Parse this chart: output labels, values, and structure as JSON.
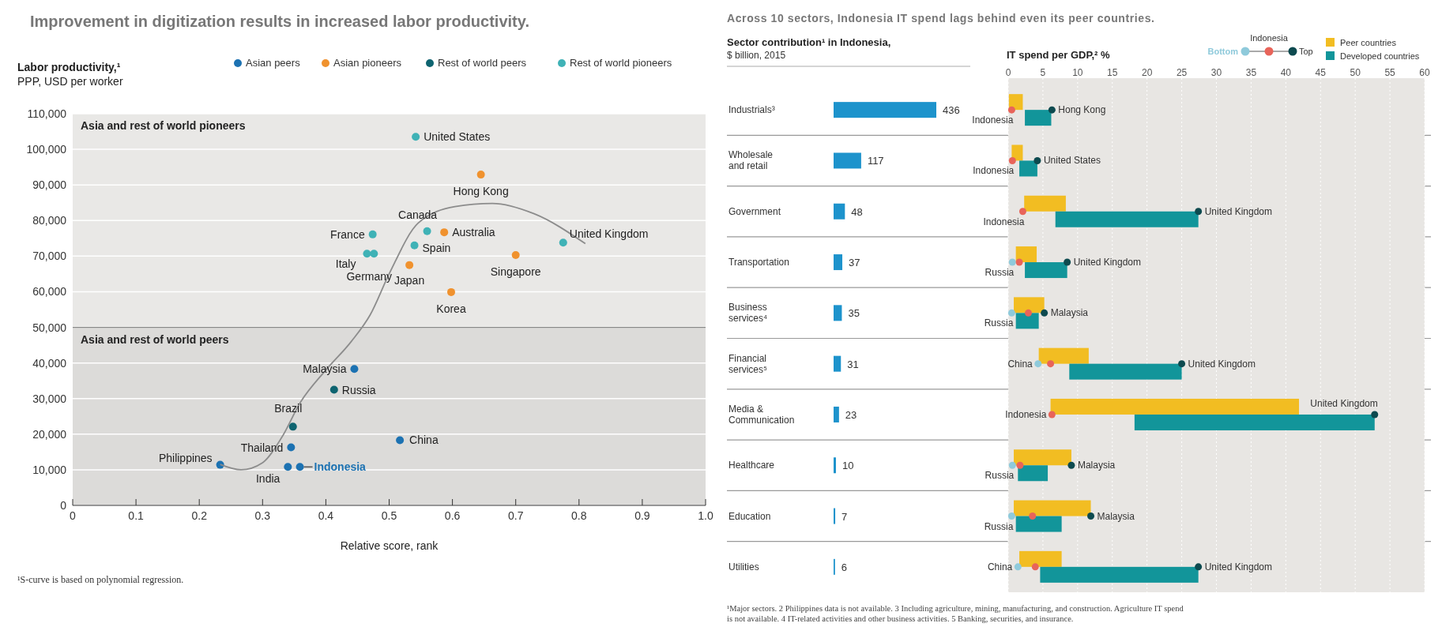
{
  "chart_data": [
    {
      "type": "scatter",
      "title": "Improvement in digitization results in increased labor productivity.",
      "ylabel": "Labor productivity,¹",
      "subtitle": "PPP, USD per worker",
      "xlabel": "Relative score, rank",
      "xlim": [
        0,
        1
      ],
      "xticks": [
        0,
        0.1,
        0.2,
        0.3,
        0.4,
        0.5,
        0.6,
        0.7,
        0.8,
        0.9,
        {
          "value": 1,
          "label": "1.0"
        }
      ],
      "ylim": [
        0,
        110000
      ],
      "yticks": [
        0,
        {
          "value": 10000,
          "label": "10,000"
        },
        {
          "value": 20000,
          "label": "20,000"
        },
        {
          "value": 30000,
          "label": "30,000"
        },
        {
          "value": 40000,
          "label": "40,000"
        },
        {
          "value": 50000,
          "label": "50,000"
        },
        {
          "value": 60000,
          "label": "60,000"
        },
        {
          "value": 70000,
          "label": "70,000"
        },
        {
          "value": 80000,
          "label": "80,000"
        },
        {
          "value": 90000,
          "label": "90,000"
        },
        {
          "value": 100000,
          "label": "100,000"
        },
        {
          "value": 110000,
          "label": "110,000"
        }
      ],
      "grid": "y",
      "legend": "top right",
      "marker": "circle",
      "ref_lines": [
        {
          "axis": "y",
          "value": 50000,
          "color": "#888888"
        }
      ],
      "bands": [
        {
          "axis": "y",
          "from": 50000,
          "to": 110000,
          "label": "Asia and rest of world pioneers",
          "color": "#e9e8e6"
        },
        {
          "axis": "y",
          "from": 0,
          "to": 50000,
          "label": "Asia and rest of world peers",
          "color": "#dcdbd9"
        }
      ],
      "series": [
        {
          "name": "Asian peers",
          "color": "#1c72b2",
          "x": [
            0.445,
            0.345,
            0.233,
            0.34,
            0.359,
            0.517
          ],
          "values": [
            38300,
            16300,
            11400,
            10800,
            10800,
            18300
          ]
        },
        {
          "name": "Asian pioneers",
          "color": "#f0922e",
          "x": [
            0.645,
            0.587,
            0.532,
            0.7,
            0.598
          ],
          "values": [
            92900,
            76700,
            67500,
            70300,
            59900
          ]
        },
        {
          "name": "Rest of world peers",
          "color": "#0e6470",
          "x": [
            0.413,
            0.348
          ],
          "values": [
            32500,
            22100
          ]
        },
        {
          "name": "Rest of world pioneers",
          "color": "#3fb2b6",
          "x": [
            0.542,
            0.56,
            0.474,
            0.54,
            0.465,
            0.476,
            0.775
          ],
          "values": [
            103500,
            77000,
            76100,
            73000,
            70700,
            70700,
            73800
          ]
        },
        {
          "type": "line",
          "marker": "none",
          "color": "#8c8c8c",
          "x": [
            0.233,
            0.266,
            0.3,
            0.33,
            0.36,
            0.4,
            0.44,
            0.47,
            0.5,
            0.546,
            0.604,
            0.663,
            0.729,
            0.81
          ],
          "values": [
            11500,
            10000,
            12000,
            19000,
            29000,
            38000,
            46000,
            53500,
            65000,
            79300,
            83900,
            84800,
            81900,
            73500
          ]
        }
      ],
      "annotations": [
        {
          "text": "United States",
          "x": 0.542,
          "y": 103500
        },
        {
          "text": "Hong Kong",
          "x": 0.645,
          "y": 92900
        },
        {
          "text": "Canada",
          "x": 0.56,
          "y": 77000
        },
        {
          "text": "Australia",
          "x": 0.587,
          "y": 76700
        },
        {
          "text": "France",
          "x": 0.474,
          "y": 76100
        },
        {
          "text": "Spain",
          "x": 0.54,
          "y": 73000
        },
        {
          "text": "Italy",
          "x": 0.465,
          "y": 70700
        },
        {
          "text": "Germany",
          "x": 0.476,
          "y": 70700
        },
        {
          "text": "United Kingdom",
          "x": 0.775,
          "y": 73800
        },
        {
          "text": "Japan",
          "x": 0.532,
          "y": 67500
        },
        {
          "text": "Singapore",
          "x": 0.7,
          "y": 70300
        },
        {
          "text": "Korea",
          "x": 0.598,
          "y": 59900
        },
        {
          "text": "Malaysia",
          "x": 0.445,
          "y": 38300
        },
        {
          "text": "Russia",
          "x": 0.413,
          "y": 32500
        },
        {
          "text": "Brazil",
          "x": 0.348,
          "y": 22100
        },
        {
          "text": "Thailand",
          "x": 0.345,
          "y": 16300
        },
        {
          "text": "Philippines",
          "x": 0.233,
          "y": 11400
        },
        {
          "text": "India",
          "x": 0.34,
          "y": 10800
        },
        {
          "text": "Indonesia",
          "x": 0.359,
          "y": 10800
        },
        {
          "text": "China",
          "x": 0.517,
          "y": 18300
        },
        "¹S-curve is based on polynomial regression."
      ]
    },
    {
      "type": "bar",
      "orientation": "horizontal",
      "title": "Across 10 sectors, Indonesia IT spend lags behind even its peer countries.",
      "subtitle": "Sector contribution¹ in Indonesia,",
      "xlabel": "$ billion, 2015",
      "categories": [
        "Industrials³",
        "Wholesale and retail",
        "Government",
        "Transportation",
        "Business services⁴",
        "Financial services⁵",
        "Media & Communication",
        "Healthcare",
        "Education",
        "Utilities"
      ],
      "values": [
        436,
        117,
        48,
        37,
        35,
        31,
        23,
        10,
        7,
        6
      ],
      "color": "#1d93cc",
      "data_labels": true,
      "tick_labels": "y"
    },
    {
      "type": "bar",
      "orientation": "horizontal",
      "xlabel": "IT spend per GDP,² %",
      "categories": [
        "Industrials³",
        "Wholesale and retail",
        "Government",
        "Transportation",
        "Business services⁴",
        "Financial services⁵",
        "Media & Communication",
        "Healthcare",
        "Education",
        "Utilities"
      ],
      "xlim": [
        0,
        60
      ],
      "xticks": [
        0,
        5,
        10,
        15,
        20,
        25,
        30,
        35,
        40,
        45,
        50,
        55,
        60
      ],
      "grid": "x",
      "legend": "top right",
      "tick_labels": "x",
      "series": [
        {
          "name": "Peer countries",
          "color": "#f2bd22",
          "base": [
            0.1,
            0.5,
            2.3,
            1.1,
            0.8,
            4.4,
            6.1,
            0.8,
            0.8,
            1.6
          ],
          "values": [
            2.0,
            1.6,
            6.0,
            3.0,
            4.4,
            7.2,
            35.8,
            8.3,
            11.1,
            6.1
          ]
        },
        {
          "name": "Developed countries",
          "color": "#12959a",
          "base": [
            2.4,
            1.6,
            6.8,
            2.4,
            1.1,
            8.8,
            18.2,
            1.4,
            1.1,
            4.6
          ],
          "values": [
            3.8,
            2.6,
            20.6,
            6.1,
            3.3,
            16.2,
            34.6,
            4.3,
            6.6,
            22.8
          ]
        },
        {
          "type": "scatter",
          "name": "Bottom",
          "color": "#8fcadb",
          "values": [
            null,
            null,
            null,
            0.6,
            0.5,
            4.3,
            null,
            0.6,
            0.5,
            1.4
          ]
        },
        {
          "type": "scatter",
          "name": "Indonesia",
          "color": "#e8645a",
          "values": [
            0.5,
            0.6,
            2.1,
            1.6,
            2.9,
            6.1,
            6.3,
            1.7,
            3.5,
            3.9
          ]
        },
        {
          "type": "scatter",
          "name": "Top",
          "color": "#0d4a4f",
          "values": [
            6.3,
            4.2,
            27.4,
            8.5,
            5.2,
            25.0,
            52.8,
            9.1,
            11.9,
            27.4
          ]
        }
      ],
      "annotations": [
        {
          "text": "Hong Kong",
          "x": 6.3,
          "y": "Industrials³"
        },
        {
          "text": "United States",
          "x": 4.2,
          "y": "Wholesale and retail"
        },
        {
          "text": "United Kingdom",
          "x": 27.4,
          "y": "Government"
        },
        {
          "text": "Russia",
          "x": 0.6,
          "y": "Transportation"
        },
        {
          "text": "United Kingdom",
          "x": 8.5,
          "y": "Transportation"
        },
        {
          "text": "Russia",
          "x": 0.5,
          "y": "Business services⁴"
        },
        {
          "text": "Malaysia",
          "x": 5.2,
          "y": "Business services⁴"
        },
        {
          "text": "China",
          "x": 4.3,
          "y": "Financial services⁵"
        },
        {
          "text": "United Kingdom",
          "x": 25.0,
          "y": "Financial services⁵"
        },
        {
          "text": "United Kingdom",
          "x": 52.8,
          "y": "Media & Communication"
        },
        {
          "text": "Russia",
          "x": 0.6,
          "y": "Healthcare"
        },
        {
          "text": "Malaysia",
          "x": 9.1,
          "y": "Healthcare"
        },
        {
          "text": "Russia",
          "x": 0.5,
          "y": "Education"
        },
        {
          "text": "Malaysia",
          "x": 11.9,
          "y": "Education"
        },
        {
          "text": "China",
          "x": 1.4,
          "y": "Utilities"
        },
        {
          "text": "United Kingdom",
          "x": 27.4,
          "y": "Utilities"
        },
        "¹Major sectors. 2 Philippines data is not available. 3 Including agriculture, mining, manufacturing, and construction. Agriculture IT spend",
        "is not available. 4 IT-related activities and other business activities. 5 Banking, securities, and insurance."
      ]
    }
  ]
}
